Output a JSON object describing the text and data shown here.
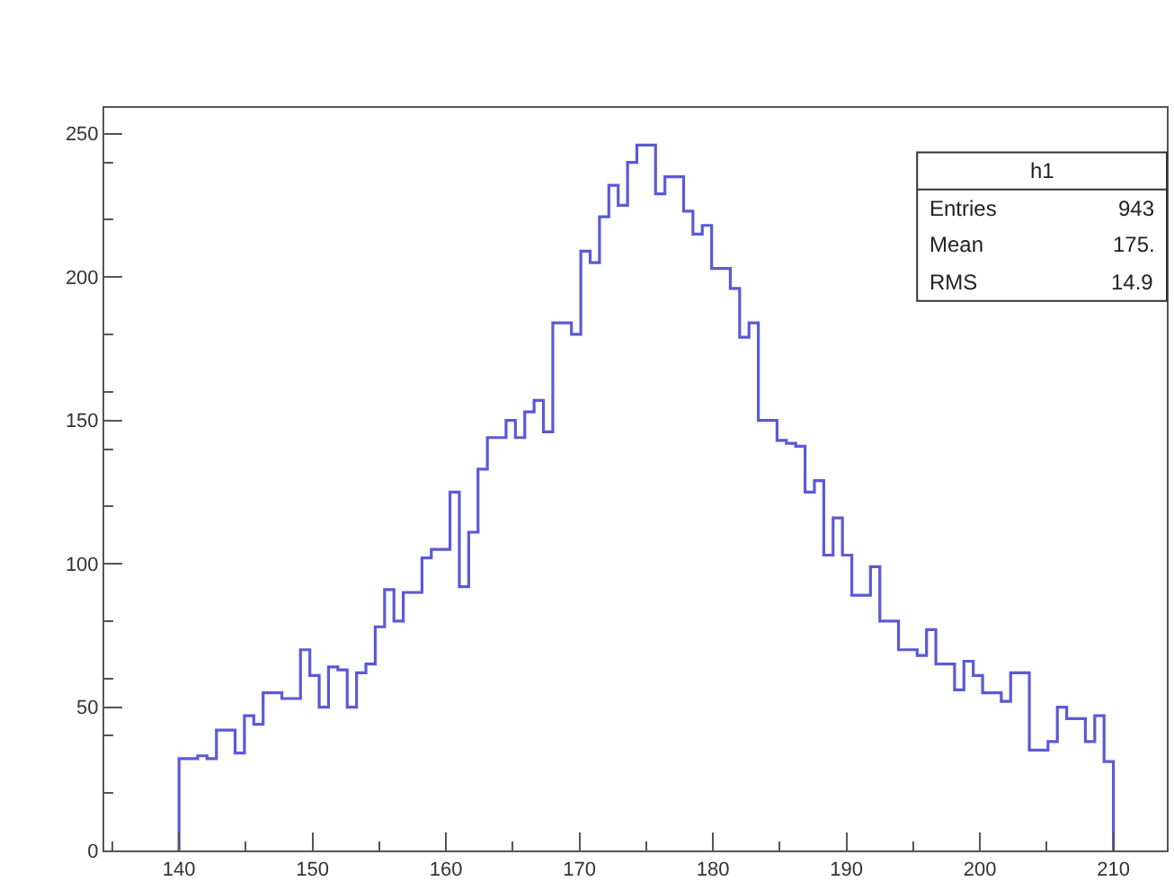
{
  "chart_data": {
    "type": "histogram",
    "bins": [
      140,
      140.7,
      141.4,
      142.1,
      142.8,
      143.5,
      144.2,
      144.9,
      145.6,
      146.3,
      147,
      147.7,
      148.4,
      149.1,
      149.8,
      150.5,
      151.2,
      151.9,
      152.6,
      153.3,
      154,
      154.7,
      155.4,
      156.1,
      156.8,
      157.5,
      158.2,
      158.9,
      159.6,
      160.3,
      161,
      161.7,
      162.4,
      163.1,
      163.8,
      164.5,
      165.2,
      165.9,
      166.6,
      167.3,
      168,
      168.7,
      169.4,
      170.1,
      170.8,
      171.5,
      172.2,
      172.9,
      173.6,
      174.3,
      175,
      175.7,
      176.4,
      177.1,
      177.8,
      178.5,
      179.2,
      179.9,
      180.6,
      181.3,
      182,
      182.7,
      183.4,
      184.1,
      184.8,
      185.5,
      186.2,
      186.9,
      187.6,
      188.3,
      189,
      189.7,
      190.4,
      191.1,
      191.8,
      192.5,
      193.2,
      193.9,
      194.6,
      195.3,
      196,
      196.7,
      197.4,
      198.1,
      198.8,
      199.5,
      200.2,
      200.9,
      201.6,
      202.3,
      203,
      203.7,
      204.4,
      205.1,
      205.8,
      206.5,
      207.2,
      207.9,
      208.6,
      209.3,
      210
    ],
    "values": [
      32,
      32,
      33,
      32,
      42,
      42,
      34,
      47,
      44,
      55,
      55,
      53,
      53,
      70,
      61,
      50,
      64,
      63,
      50,
      62,
      65,
      78,
      91,
      80,
      90,
      90,
      102,
      105,
      105,
      125,
      92,
      111,
      133,
      144,
      144,
      150,
      144,
      153,
      157,
      146,
      184,
      184,
      180,
      209,
      205,
      221,
      232,
      225,
      240,
      246,
      246,
      229,
      235,
      235,
      223,
      215,
      218,
      203,
      203,
      196,
      179,
      184,
      150,
      150,
      143,
      142,
      141,
      125,
      129,
      103,
      116,
      103,
      89,
      89,
      99,
      80,
      80,
      70,
      70,
      68,
      77,
      65,
      65,
      56,
      66,
      61,
      55,
      55,
      52,
      62,
      62,
      35,
      35,
      38,
      50,
      46,
      46,
      38,
      47,
      31
    ],
    "color": "#5a5ad6",
    "xlim": [
      134.4,
      214
    ],
    "ylim": [
      0,
      259
    ],
    "xticks": [
      140,
      150,
      160,
      170,
      180,
      190,
      200,
      210
    ],
    "yticks": [
      0,
      50,
      100,
      150,
      200,
      250
    ],
    "annotations": [
      "h1",
      "Entries 943",
      "Mean 175.",
      "RMS 14.9"
    ]
  }
}
